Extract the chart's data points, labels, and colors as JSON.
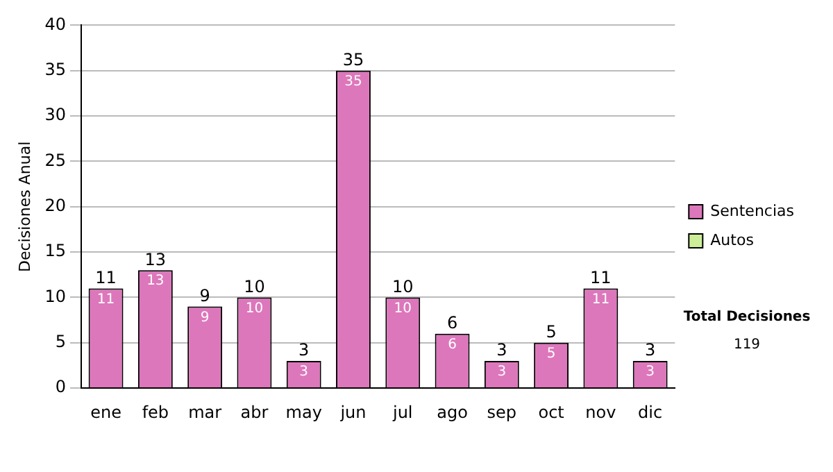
{
  "chart_data": {
    "type": "bar",
    "ylabel": "Decisiones Anual",
    "categories": [
      "ene",
      "feb",
      "mar",
      "abr",
      "may",
      "jun",
      "jul",
      "ago",
      "sep",
      "oct",
      "nov",
      "dic"
    ],
    "series": [
      {
        "name": "Sentencias",
        "color": "#dd77bb",
        "values": [
          11,
          13,
          9,
          10,
          3,
          35,
          10,
          6,
          3,
          5,
          11,
          3
        ],
        "value_labels": [
          "11",
          "13",
          "9",
          "10",
          "3",
          "35",
          "10",
          "6",
          "3",
          "5",
          "11",
          "3"
        ]
      },
      {
        "name": "Autos",
        "color": "#ccee99",
        "values": [
          0,
          0,
          0,
          0,
          0,
          0,
          0,
          0,
          0,
          0,
          0,
          0
        ]
      }
    ],
    "stacked": true,
    "totals": [
      "11",
      "13",
      "9",
      "10",
      "3",
      "35",
      "10",
      "6",
      "3",
      "5",
      "11",
      "3"
    ],
    "ylim": [
      0,
      40
    ],
    "yticks": [
      0,
      5,
      10,
      15,
      20,
      25,
      30,
      35,
      40
    ],
    "grid": "y",
    "legend": "right",
    "annotations": [
      "Total Decisiones",
      "119"
    ]
  }
}
